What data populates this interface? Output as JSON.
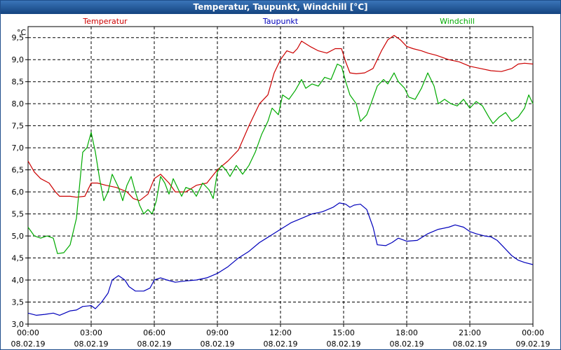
{
  "window": {
    "title": "Temperatur, Taupunkt, Windchill [°C]"
  },
  "chart_data": {
    "type": "line",
    "title": "Temperatur, Taupunkt, Windchill [°C]",
    "unit_label": "°C",
    "xlim": [
      0,
      24
    ],
    "ylim": [
      3.0,
      9.75
    ],
    "y_ticks": [
      {
        "v": 3.0,
        "label": "3,0"
      },
      {
        "v": 3.5,
        "label": "3,5"
      },
      {
        "v": 4.0,
        "label": "4,0"
      },
      {
        "v": 4.5,
        "label": "4,5"
      },
      {
        "v": 5.0,
        "label": "5,0"
      },
      {
        "v": 5.5,
        "label": "5,5"
      },
      {
        "v": 6.0,
        "label": "6,0"
      },
      {
        "v": 6.5,
        "label": "6,5"
      },
      {
        "v": 7.0,
        "label": "7,0"
      },
      {
        "v": 7.5,
        "label": "7,5"
      },
      {
        "v": 8.0,
        "label": "8,0"
      },
      {
        "v": 8.5,
        "label": "8,5"
      },
      {
        "v": 9.0,
        "label": "9,0"
      },
      {
        "v": 9.5,
        "label": "9,5"
      }
    ],
    "x_ticks": [
      {
        "v": 0,
        "time": "00:00",
        "date": "08.02.19"
      },
      {
        "v": 3,
        "time": "03:00",
        "date": "08.02.19"
      },
      {
        "v": 6,
        "time": "06:00",
        "date": "08.02.19"
      },
      {
        "v": 9,
        "time": "09:00",
        "date": "08.02.19"
      },
      {
        "v": 12,
        "time": "12:00",
        "date": "08.02.19"
      },
      {
        "v": 15,
        "time": "15:00",
        "date": "08.02.19"
      },
      {
        "v": 18,
        "time": "18:00",
        "date": "08.02.19"
      },
      {
        "v": 21,
        "time": "21:00",
        "date": "08.02.19"
      },
      {
        "v": 24,
        "time": "00:00",
        "date": "09.02.19"
      }
    ],
    "grid": true,
    "legend_position": "top",
    "series": [
      {
        "name": "Temperatur",
        "color": "#cc0000",
        "points": [
          [
            0,
            6.7
          ],
          [
            0.3,
            6.45
          ],
          [
            0.6,
            6.3
          ],
          [
            1,
            6.2
          ],
          [
            1.3,
            6.0
          ],
          [
            1.5,
            5.9
          ],
          [
            2,
            5.9
          ],
          [
            2.3,
            5.88
          ],
          [
            2.7,
            5.9
          ],
          [
            3,
            6.2
          ],
          [
            3.3,
            6.2
          ],
          [
            3.7,
            6.15
          ],
          [
            4.2,
            6.1
          ],
          [
            4.7,
            6.0
          ],
          [
            5,
            5.85
          ],
          [
            5.3,
            5.8
          ],
          [
            5.7,
            5.95
          ],
          [
            6,
            6.3
          ],
          [
            6.3,
            6.4
          ],
          [
            6.7,
            6.2
          ],
          [
            7,
            6.0
          ],
          [
            7.5,
            6.0
          ],
          [
            8,
            6.15
          ],
          [
            8.5,
            6.2
          ],
          [
            9,
            6.5
          ],
          [
            9.5,
            6.7
          ],
          [
            10,
            6.95
          ],
          [
            10.5,
            7.5
          ],
          [
            11,
            8.0
          ],
          [
            11.4,
            8.2
          ],
          [
            11.7,
            8.7
          ],
          [
            12,
            9.0
          ],
          [
            12.3,
            9.2
          ],
          [
            12.6,
            9.15
          ],
          [
            12.8,
            9.25
          ],
          [
            13,
            9.42
          ],
          [
            13.4,
            9.3
          ],
          [
            13.8,
            9.2
          ],
          [
            14.2,
            9.15
          ],
          [
            14.6,
            9.25
          ],
          [
            14.9,
            9.25
          ],
          [
            15.1,
            8.95
          ],
          [
            15.3,
            8.7
          ],
          [
            15.6,
            8.68
          ],
          [
            16,
            8.7
          ],
          [
            16.4,
            8.8
          ],
          [
            16.8,
            9.2
          ],
          [
            17.1,
            9.45
          ],
          [
            17.4,
            9.55
          ],
          [
            17.7,
            9.45
          ],
          [
            18,
            9.3
          ],
          [
            18.3,
            9.25
          ],
          [
            18.7,
            9.2
          ],
          [
            19,
            9.15
          ],
          [
            19.4,
            9.1
          ],
          [
            19.7,
            9.05
          ],
          [
            20,
            9.0
          ],
          [
            20.5,
            8.95
          ],
          [
            21,
            8.85
          ],
          [
            21.5,
            8.8
          ],
          [
            22,
            8.75
          ],
          [
            22.5,
            8.73
          ],
          [
            23,
            8.8
          ],
          [
            23.3,
            8.9
          ],
          [
            23.6,
            8.92
          ],
          [
            24,
            8.9
          ]
        ]
      },
      {
        "name": "Taupunkt",
        "color": "#0000bb",
        "points": [
          [
            0,
            3.25
          ],
          [
            0.4,
            3.2
          ],
          [
            0.8,
            3.22
          ],
          [
            1.2,
            3.25
          ],
          [
            1.5,
            3.2
          ],
          [
            2,
            3.3
          ],
          [
            2.3,
            3.32
          ],
          [
            2.6,
            3.4
          ],
          [
            3,
            3.42
          ],
          [
            3.2,
            3.35
          ],
          [
            3.5,
            3.5
          ],
          [
            3.8,
            3.7
          ],
          [
            4,
            4.0
          ],
          [
            4.3,
            4.1
          ],
          [
            4.6,
            4.0
          ],
          [
            4.8,
            3.85
          ],
          [
            5.1,
            3.75
          ],
          [
            5.5,
            3.75
          ],
          [
            5.8,
            3.82
          ],
          [
            6,
            4.0
          ],
          [
            6.3,
            4.05
          ],
          [
            6.6,
            4.0
          ],
          [
            7,
            3.95
          ],
          [
            7.5,
            3.98
          ],
          [
            8,
            4.0
          ],
          [
            8.5,
            4.05
          ],
          [
            9,
            4.15
          ],
          [
            9.5,
            4.3
          ],
          [
            10,
            4.5
          ],
          [
            10.5,
            4.65
          ],
          [
            11,
            4.85
          ],
          [
            11.5,
            5.0
          ],
          [
            12,
            5.15
          ],
          [
            12.5,
            5.3
          ],
          [
            13,
            5.4
          ],
          [
            13.5,
            5.5
          ],
          [
            14,
            5.55
          ],
          [
            14.5,
            5.65
          ],
          [
            14.8,
            5.75
          ],
          [
            15.1,
            5.72
          ],
          [
            15.3,
            5.65
          ],
          [
            15.5,
            5.7
          ],
          [
            15.8,
            5.72
          ],
          [
            16.1,
            5.6
          ],
          [
            16.4,
            5.2
          ],
          [
            16.6,
            4.8
          ],
          [
            17,
            4.78
          ],
          [
            17.3,
            4.85
          ],
          [
            17.6,
            4.95
          ],
          [
            18,
            4.88
          ],
          [
            18.5,
            4.9
          ],
          [
            19,
            5.05
          ],
          [
            19.5,
            5.15
          ],
          [
            20,
            5.2
          ],
          [
            20.3,
            5.25
          ],
          [
            20.7,
            5.2
          ],
          [
            21,
            5.1
          ],
          [
            21.3,
            5.05
          ],
          [
            21.7,
            5.0
          ],
          [
            22,
            4.98
          ],
          [
            22.3,
            4.9
          ],
          [
            22.6,
            4.75
          ],
          [
            23,
            4.55
          ],
          [
            23.3,
            4.45
          ],
          [
            23.6,
            4.4
          ],
          [
            24,
            4.35
          ]
        ]
      },
      {
        "name": "Windchill",
        "color": "#00aa00",
        "points": [
          [
            0,
            5.2
          ],
          [
            0.3,
            5.0
          ],
          [
            0.6,
            4.95
          ],
          [
            0.9,
            5.0
          ],
          [
            1.2,
            4.95
          ],
          [
            1.4,
            4.6
          ],
          [
            1.7,
            4.62
          ],
          [
            2,
            4.8
          ],
          [
            2.3,
            5.4
          ],
          [
            2.6,
            6.9
          ],
          [
            2.8,
            7.0
          ],
          [
            3,
            7.35
          ],
          [
            3.2,
            6.9
          ],
          [
            3.4,
            6.3
          ],
          [
            3.6,
            5.8
          ],
          [
            3.8,
            6.0
          ],
          [
            4,
            6.4
          ],
          [
            4.3,
            6.1
          ],
          [
            4.5,
            5.8
          ],
          [
            4.7,
            6.15
          ],
          [
            4.9,
            6.35
          ],
          [
            5.1,
            6.0
          ],
          [
            5.3,
            5.7
          ],
          [
            5.5,
            5.5
          ],
          [
            5.7,
            5.6
          ],
          [
            5.9,
            5.5
          ],
          [
            6.1,
            5.8
          ],
          [
            6.3,
            6.35
          ],
          [
            6.5,
            6.2
          ],
          [
            6.7,
            5.95
          ],
          [
            6.9,
            6.3
          ],
          [
            7.1,
            6.1
          ],
          [
            7.3,
            5.9
          ],
          [
            7.5,
            6.1
          ],
          [
            7.8,
            6.05
          ],
          [
            8,
            5.9
          ],
          [
            8.3,
            6.2
          ],
          [
            8.6,
            6.05
          ],
          [
            8.8,
            5.85
          ],
          [
            9,
            6.45
          ],
          [
            9.2,
            6.6
          ],
          [
            9.4,
            6.5
          ],
          [
            9.6,
            6.35
          ],
          [
            9.9,
            6.6
          ],
          [
            10.2,
            6.4
          ],
          [
            10.5,
            6.6
          ],
          [
            10.8,
            6.9
          ],
          [
            11.1,
            7.3
          ],
          [
            11.4,
            7.6
          ],
          [
            11.6,
            7.9
          ],
          [
            11.9,
            7.75
          ],
          [
            12.1,
            8.2
          ],
          [
            12.4,
            8.1
          ],
          [
            12.7,
            8.3
          ],
          [
            13,
            8.55
          ],
          [
            13.2,
            8.35
          ],
          [
            13.5,
            8.45
          ],
          [
            13.8,
            8.4
          ],
          [
            14.1,
            8.6
          ],
          [
            14.4,
            8.55
          ],
          [
            14.7,
            8.9
          ],
          [
            14.9,
            8.85
          ],
          [
            15.1,
            8.5
          ],
          [
            15.3,
            8.2
          ],
          [
            15.6,
            8.0
          ],
          [
            15.8,
            7.6
          ],
          [
            16.1,
            7.75
          ],
          [
            16.3,
            8.0
          ],
          [
            16.6,
            8.4
          ],
          [
            16.9,
            8.55
          ],
          [
            17.1,
            8.45
          ],
          [
            17.4,
            8.7
          ],
          [
            17.6,
            8.5
          ],
          [
            17.9,
            8.35
          ],
          [
            18.1,
            8.15
          ],
          [
            18.4,
            8.1
          ],
          [
            18.7,
            8.35
          ],
          [
            19,
            8.7
          ],
          [
            19.3,
            8.4
          ],
          [
            19.5,
            8.0
          ],
          [
            19.8,
            8.1
          ],
          [
            20.1,
            8.0
          ],
          [
            20.4,
            7.95
          ],
          [
            20.7,
            8.1
          ],
          [
            21,
            7.9
          ],
          [
            21.3,
            8.05
          ],
          [
            21.6,
            7.95
          ],
          [
            21.9,
            7.7
          ],
          [
            22.1,
            7.55
          ],
          [
            22.4,
            7.7
          ],
          [
            22.7,
            7.8
          ],
          [
            23,
            7.6
          ],
          [
            23.3,
            7.7
          ],
          [
            23.6,
            7.9
          ],
          [
            23.8,
            8.2
          ],
          [
            24,
            8.0
          ]
        ]
      }
    ]
  }
}
